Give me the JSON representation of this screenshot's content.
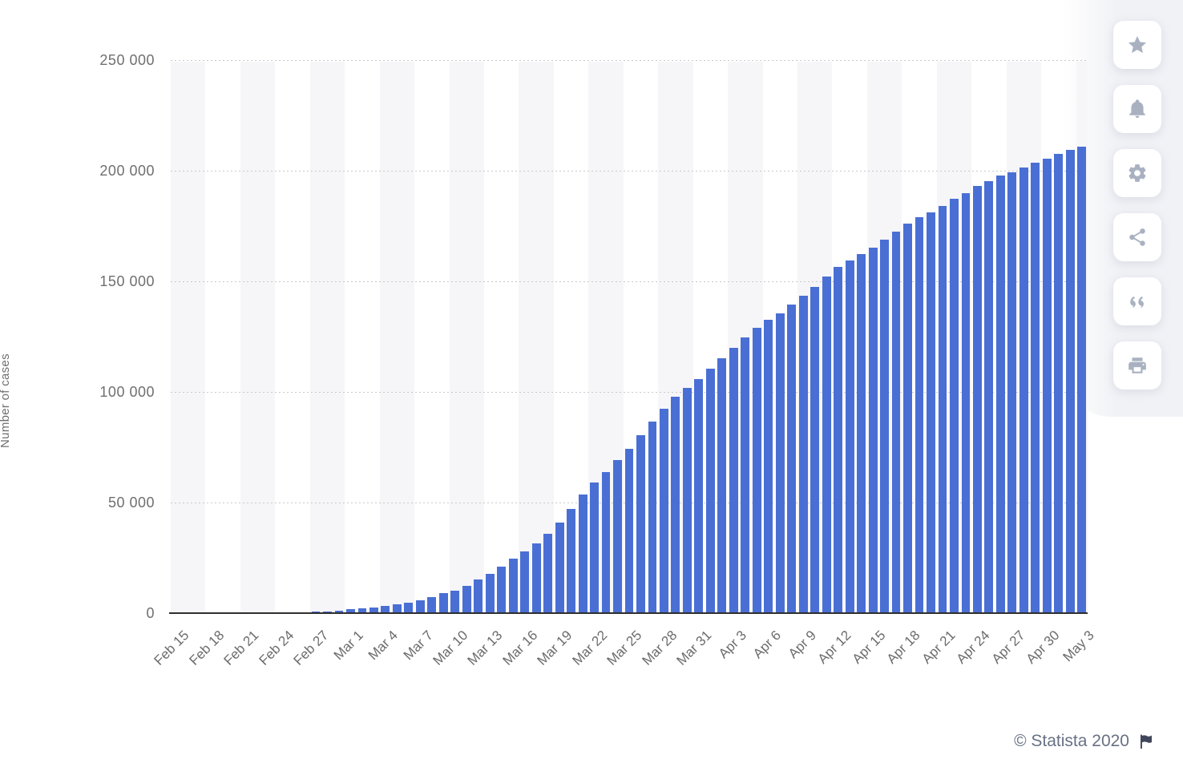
{
  "chart_data": {
    "type": "bar",
    "title": "",
    "xlabel": "",
    "ylabel": "Number of cases",
    "ylim": [
      0,
      250000
    ],
    "grid": "horizontal-dotted",
    "legend": null,
    "bar_color": "#4a6fd4",
    "stripe_color": "#f6f6f8",
    "xtick_every": 3,
    "yticks": [
      0,
      50000,
      100000,
      150000,
      200000,
      250000
    ],
    "ytick_labels": [
      "0",
      "50 000",
      "100 000",
      "150 000",
      "200 000",
      "250 000"
    ],
    "x": [
      "Feb 15",
      "Feb 16",
      "Feb 17",
      "Feb 18",
      "Feb 19",
      "Feb 20",
      "Feb 21",
      "Feb 22",
      "Feb 23",
      "Feb 24",
      "Feb 25",
      "Feb 26",
      "Feb 27",
      "Feb 28",
      "Feb 29",
      "Mar 1",
      "Mar 2",
      "Mar 3",
      "Mar 4",
      "Mar 5",
      "Mar 6",
      "Mar 7",
      "Mar 8",
      "Mar 9",
      "Mar 10",
      "Mar 11",
      "Mar 12",
      "Mar 13",
      "Mar 14",
      "Mar 15",
      "Mar 16",
      "Mar 17",
      "Mar 18",
      "Mar 19",
      "Mar 20",
      "Mar 21",
      "Mar 22",
      "Mar 23",
      "Mar 24",
      "Mar 25",
      "Mar 26",
      "Mar 27",
      "Mar 28",
      "Mar 29",
      "Mar 30",
      "Mar 31",
      "Apr 1",
      "Apr 2",
      "Apr 3",
      "Apr 4",
      "Apr 5",
      "Apr 6",
      "Apr 7",
      "Apr 8",
      "Apr 9",
      "Apr 10",
      "Apr 11",
      "Apr 12",
      "Apr 13",
      "Apr 14",
      "Apr 15",
      "Apr 16",
      "Apr 17",
      "Apr 18",
      "Apr 19",
      "Apr 20",
      "Apr 21",
      "Apr 22",
      "Apr 23",
      "Apr 24",
      "Apr 25",
      "Apr 26",
      "Apr 27",
      "Apr 28",
      "Apr 29",
      "Apr 30",
      "May 1",
      "May 2",
      "May 3"
    ],
    "values": [
      3,
      3,
      3,
      3,
      3,
      3,
      20,
      79,
      150,
      227,
      320,
      445,
      650,
      888,
      1128,
      1694,
      2036,
      2502,
      3089,
      3858,
      4636,
      5883,
      7375,
      9172,
      10149,
      12462,
      15113,
      17660,
      21157,
      24747,
      27980,
      31506,
      35713,
      41035,
      47021,
      53578,
      59138,
      63927,
      69176,
      74386,
      80539,
      86498,
      92472,
      97689,
      101739,
      105792,
      110574,
      115242,
      119827,
      124632,
      128948,
      132547,
      135586,
      139422,
      143626,
      147577,
      152271,
      156363,
      159516,
      162488,
      165155,
      168941,
      172434,
      175925,
      178972,
      181228,
      183957,
      187327,
      189973,
      192994,
      195351,
      197675,
      199414,
      201505,
      203591,
      205463,
      207428,
      209328,
      210717
    ],
    "xtick_labels_shown": [
      "Feb 15",
      "Feb 18",
      "Feb 21",
      "Feb 24",
      "Feb 27",
      "Mar 1",
      "Mar 4",
      "Mar 7",
      "Mar 10",
      "Mar 13",
      "Mar 16",
      "Mar 19",
      "Mar 22",
      "Mar 25",
      "Mar 28",
      "Mar 31",
      "Apr 3",
      "Apr 6",
      "Apr 9",
      "Apr 12",
      "Apr 15",
      "Apr 18",
      "Apr 21",
      "Apr 24",
      "Apr 27",
      "Apr 30",
      "May 3"
    ]
  },
  "toolbar": {
    "buttons": [
      {
        "label": "favorite",
        "icon": "star-icon"
      },
      {
        "label": "alert",
        "icon": "bell-icon"
      },
      {
        "label": "settings",
        "icon": "gear-icon"
      },
      {
        "label": "share",
        "icon": "share-icon"
      },
      {
        "label": "cite",
        "icon": "quote-icon"
      },
      {
        "label": "print",
        "icon": "print-icon"
      }
    ],
    "icon_color": "#a9b1c1"
  },
  "footer": {
    "copyright": "© Statista 2020",
    "flag_icon": "flag-icon",
    "flag_color": "#40475a"
  }
}
